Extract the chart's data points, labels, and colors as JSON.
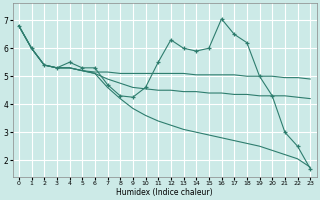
{
  "xlabel": "Humidex (Indice chaleur)",
  "bg_color": "#cceae7",
  "grid_color": "#ffffff",
  "line_color": "#2e7d6e",
  "xlim": [
    -0.5,
    23.5
  ],
  "ylim": [
    1.4,
    7.6
  ],
  "yticks": [
    2,
    3,
    4,
    5,
    6,
    7
  ],
  "xticks": [
    0,
    1,
    2,
    3,
    4,
    5,
    6,
    7,
    8,
    9,
    10,
    11,
    12,
    13,
    14,
    15,
    16,
    17,
    18,
    19,
    20,
    21,
    22,
    23
  ],
  "series1_x": [
    0,
    1,
    2,
    3,
    4,
    5,
    6,
    7,
    8,
    9,
    10,
    11,
    12,
    13,
    14,
    15,
    16,
    17,
    18,
    19,
    20,
    21,
    22,
    23
  ],
  "series1_y": [
    6.8,
    6.0,
    5.4,
    5.3,
    5.5,
    5.3,
    5.3,
    4.7,
    4.3,
    4.25,
    4.6,
    5.5,
    6.3,
    6.0,
    5.9,
    6.0,
    7.05,
    6.5,
    6.2,
    5.0,
    4.3,
    3.0,
    2.5,
    1.7
  ],
  "series2_x": [
    0,
    1,
    2,
    3,
    4,
    5,
    6,
    7,
    8,
    9,
    10,
    11,
    12,
    13,
    14,
    15,
    16,
    17,
    18,
    19,
    20,
    21,
    22,
    23
  ],
  "series2_y": [
    6.8,
    6.0,
    5.4,
    5.3,
    5.3,
    5.2,
    5.15,
    5.15,
    5.1,
    5.1,
    5.1,
    5.1,
    5.1,
    5.1,
    5.05,
    5.05,
    5.05,
    5.05,
    5.0,
    5.0,
    5.0,
    4.95,
    4.95,
    4.9
  ],
  "series3_x": [
    0,
    1,
    2,
    3,
    4,
    5,
    6,
    7,
    8,
    9,
    10,
    11,
    12,
    13,
    14,
    15,
    16,
    17,
    18,
    19,
    20,
    21,
    22,
    23
  ],
  "series3_y": [
    6.8,
    6.0,
    5.4,
    5.3,
    5.3,
    5.2,
    5.1,
    4.9,
    4.75,
    4.6,
    4.55,
    4.5,
    4.5,
    4.45,
    4.45,
    4.4,
    4.4,
    4.35,
    4.35,
    4.3,
    4.3,
    4.3,
    4.25,
    4.2
  ],
  "series4_x": [
    0,
    1,
    2,
    3,
    4,
    5,
    6,
    7,
    8,
    9,
    10,
    11,
    12,
    13,
    14,
    15,
    16,
    17,
    18,
    19,
    20,
    21,
    22,
    23
  ],
  "series4_y": [
    6.8,
    6.0,
    5.4,
    5.3,
    5.3,
    5.2,
    5.1,
    4.6,
    4.2,
    3.85,
    3.6,
    3.4,
    3.25,
    3.1,
    3.0,
    2.9,
    2.8,
    2.7,
    2.6,
    2.5,
    2.35,
    2.2,
    2.05,
    1.75
  ]
}
